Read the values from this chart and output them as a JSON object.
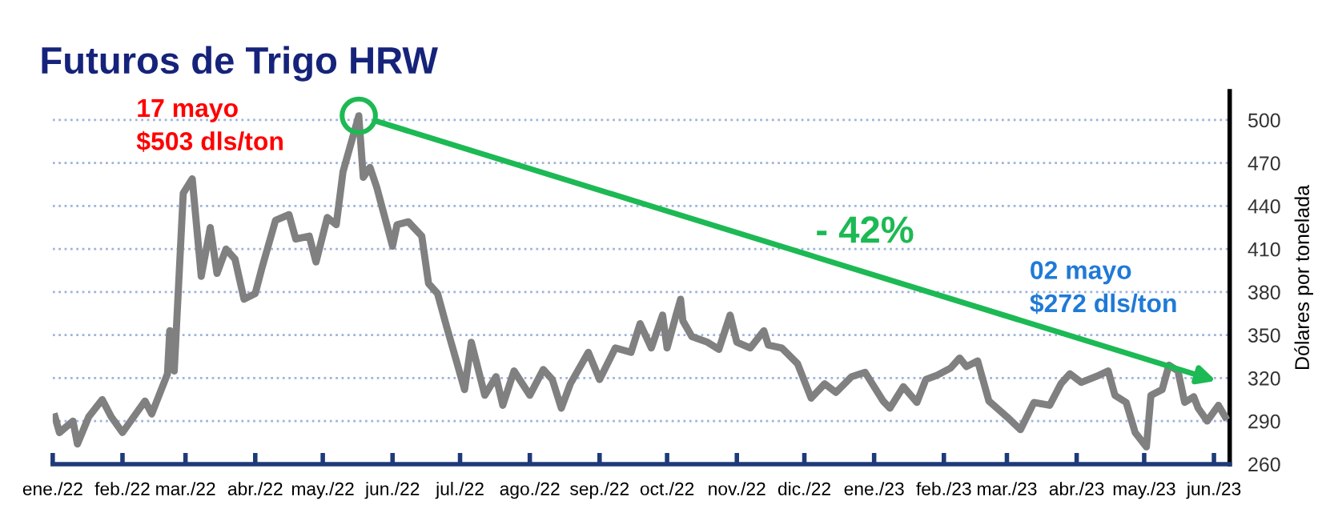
{
  "chart_data": {
    "type": "line",
    "title": "Futuros de Trigo HRW",
    "ylabel": "Dólares por tonelada",
    "x": [
      "2022-01-02",
      "2022-01-04",
      "2022-01-10",
      "2022-01-12",
      "2022-01-17",
      "2022-01-23",
      "2022-01-27",
      "2022-02-01",
      "2022-02-06",
      "2022-02-11",
      "2022-02-14",
      "2022-02-21",
      "2022-02-22",
      "2022-02-24",
      "2022-02-28",
      "2022-03-04",
      "2022-03-08",
      "2022-03-12",
      "2022-03-15",
      "2022-03-19",
      "2022-03-23",
      "2022-03-27",
      "2022-04-01",
      "2022-04-04",
      "2022-04-10",
      "2022-04-16",
      "2022-04-19",
      "2022-04-25",
      "2022-04-28",
      "2022-05-03",
      "2022-05-07",
      "2022-05-10",
      "2022-05-17",
      "2022-05-19",
      "2022-05-22",
      "2022-05-25",
      "2022-06-01",
      "2022-06-03",
      "2022-06-08",
      "2022-06-14",
      "2022-06-17",
      "2022-06-21",
      "2022-06-25",
      "2022-06-29",
      "2022-07-03",
      "2022-07-06",
      "2022-07-12",
      "2022-07-17",
      "2022-07-20",
      "2022-07-25",
      "2022-08-01",
      "2022-08-07",
      "2022-08-11",
      "2022-08-15",
      "2022-08-19",
      "2022-08-27",
      "2022-09-01",
      "2022-09-08",
      "2022-09-15",
      "2022-09-19",
      "2022-09-24",
      "2022-09-29",
      "2022-10-01",
      "2022-10-05",
      "2022-10-07",
      "2022-10-08",
      "2022-10-12",
      "2022-10-19",
      "2022-10-24",
      "2022-10-29",
      "2022-11-01",
      "2022-11-07",
      "2022-11-13",
      "2022-11-15",
      "2022-11-21",
      "2022-11-28",
      "2022-12-04",
      "2022-12-10",
      "2022-12-15",
      "2022-12-22",
      "2022-12-28",
      "2023-01-05",
      "2023-01-08",
      "2023-01-14",
      "2023-01-20",
      "2023-01-24",
      "2023-01-29",
      "2023-02-04",
      "2023-02-08",
      "2023-02-11",
      "2023-02-16",
      "2023-02-21",
      "2023-03-01",
      "2023-03-07",
      "2023-03-13",
      "2023-03-20",
      "2023-03-25",
      "2023-03-29",
      "2023-04-03",
      "2023-04-11",
      "2023-04-15",
      "2023-04-18",
      "2023-04-23",
      "2023-04-27",
      "2023-05-02",
      "2023-05-04",
      "2023-05-09",
      "2023-05-12",
      "2023-05-16",
      "2023-05-19",
      "2023-05-23",
      "2023-05-25",
      "2023-05-29",
      "2023-06-03",
      "2023-06-06"
    ],
    "series": [
      {
        "color": "#808080",
        "values": [
          293,
          282,
          290,
          274,
          293,
          305,
          293,
          282,
          293,
          304,
          295,
          323,
          353,
          325,
          449,
          459,
          391,
          425,
          393,
          410,
          403,
          375,
          379,
          397,
          430,
          434,
          417,
          419,
          401,
          432,
          427,
          464,
          503,
          460,
          467,
          453,
          412,
          427,
          429,
          419,
          386,
          379,
          356,
          334,
          312,
          345,
          308,
          321,
          301,
          325,
          308,
          326,
          319,
          299,
          316,
          338,
          319,
          341,
          338,
          358,
          341,
          364,
          341,
          364,
          375,
          360,
          349,
          345,
          340,
          364,
          345,
          341,
          353,
          343,
          341,
          330,
          306,
          316,
          310,
          321,
          324,
          304,
          299,
          314,
          303,
          319,
          322,
          327,
          334,
          328,
          332,
          304,
          293,
          284,
          303,
          301,
          316,
          323,
          317,
          322,
          325,
          308,
          303,
          282,
          272,
          308,
          312,
          329,
          325,
          303,
          307,
          299,
          290,
          301,
          293
        ]
      }
    ],
    "xlim": [
      "2022-01-01",
      "2023-06-08"
    ],
    "xticks": [
      {
        "value": "2022-01-01",
        "label": "ene./22"
      },
      {
        "value": "2022-02-01",
        "label": "feb./22"
      },
      {
        "value": "2022-03-01",
        "label": "mar./22"
      },
      {
        "value": "2022-04-01",
        "label": "abr./22"
      },
      {
        "value": "2022-05-01",
        "label": "may./22"
      },
      {
        "value": "2022-06-01",
        "label": "jun./22"
      },
      {
        "value": "2022-07-01",
        "label": "jul./22"
      },
      {
        "value": "2022-08-01",
        "label": "ago./22"
      },
      {
        "value": "2022-09-01",
        "label": "sep./22"
      },
      {
        "value": "2022-10-01",
        "label": "oct./22"
      },
      {
        "value": "2022-11-01",
        "label": "nov./22"
      },
      {
        "value": "2022-12-01",
        "label": "dic./22"
      },
      {
        "value": "2023-01-01",
        "label": "ene./23"
      },
      {
        "value": "2023-02-01",
        "label": "feb./23"
      },
      {
        "value": "2023-03-01",
        "label": "mar./23"
      },
      {
        "value": "2023-04-01",
        "label": "abr./23"
      },
      {
        "value": "2023-05-01",
        "label": "may./23"
      },
      {
        "value": "2023-06-01",
        "label": "jun./23"
      }
    ],
    "ylim": [
      260,
      520
    ],
    "yticks": [
      260,
      290,
      320,
      350,
      380,
      410,
      440,
      470,
      500
    ],
    "grid": "y",
    "legend": false,
    "marker": "none",
    "line_style": "solid",
    "annotations": [
      {
        "text": "17 mayo\n$503 dls/ton",
        "x": "2022-05-17",
        "y": 503
      },
      "- 42%",
      "02 mayo\n$272 dls/ton"
    ]
  }
}
